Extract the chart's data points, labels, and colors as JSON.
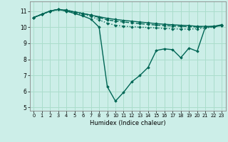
{
  "background_color": "#cceee8",
  "grid_color": "#aaddcc",
  "line_color": "#006655",
  "xlabel": "Humidex (Indice chaleur)",
  "xlim": [
    -0.5,
    23.5
  ],
  "ylim": [
    4.8,
    11.6
  ],
  "yticks": [
    5,
    6,
    7,
    8,
    9,
    10,
    11
  ],
  "xticks": [
    0,
    1,
    2,
    3,
    4,
    5,
    6,
    7,
    8,
    9,
    10,
    11,
    12,
    13,
    14,
    15,
    16,
    17,
    18,
    19,
    20,
    21,
    22,
    23
  ],
  "lines": [
    {
      "x": [
        0,
        1,
        2,
        3,
        4,
        5,
        6,
        7,
        8,
        9,
        10,
        11,
        12,
        13,
        14,
        15,
        16,
        17,
        18,
        19,
        20,
        21,
        22,
        23
      ],
      "y": [
        10.6,
        10.8,
        11.0,
        11.1,
        11.05,
        10.95,
        10.85,
        10.75,
        10.65,
        10.55,
        10.48,
        10.42,
        10.37,
        10.32,
        10.27,
        10.22,
        10.18,
        10.15,
        10.12,
        10.1,
        10.05,
        10.05,
        10.05,
        10.1
      ],
      "style": "-",
      "marker": "D",
      "markersize": 1.8,
      "linewidth": 1.0
    },
    {
      "x": [
        0,
        1,
        2,
        3,
        4,
        5,
        6,
        7,
        8,
        9,
        10,
        11,
        12,
        13,
        14,
        15,
        16,
        17,
        18,
        19,
        20,
        21,
        22,
        23
      ],
      "y": [
        10.6,
        10.8,
        11.0,
        11.1,
        11.05,
        10.95,
        10.85,
        10.75,
        10.6,
        10.45,
        10.38,
        10.32,
        10.27,
        10.22,
        10.17,
        10.13,
        10.1,
        10.07,
        10.05,
        10.03,
        10.01,
        10.01,
        10.03,
        10.1
      ],
      "style": "--",
      "marker": "D",
      "markersize": 1.8,
      "linewidth": 1.0
    },
    {
      "x": [
        0,
        1,
        2,
        3,
        4,
        5,
        6,
        7,
        8,
        9,
        10,
        11,
        12,
        13,
        14,
        15,
        16,
        17,
        18,
        19,
        20,
        21,
        22,
        23
      ],
      "y": [
        10.6,
        10.8,
        11.0,
        11.1,
        11.0,
        10.85,
        10.7,
        10.5,
        10.0,
        6.3,
        5.4,
        5.95,
        6.6,
        7.0,
        7.5,
        8.55,
        8.65,
        8.6,
        8.1,
        8.7,
        8.5,
        10.0,
        10.05,
        10.15
      ],
      "style": "-",
      "marker": "D",
      "markersize": 1.8,
      "linewidth": 1.0
    },
    {
      "x": [
        0,
        1,
        2,
        3,
        4,
        5,
        6,
        7,
        8,
        9,
        10,
        11,
        12,
        13,
        14,
        15,
        16,
        17,
        18,
        19,
        20,
        21,
        22,
        23
      ],
      "y": [
        10.6,
        10.8,
        11.0,
        11.1,
        11.0,
        10.88,
        10.78,
        10.68,
        10.45,
        10.25,
        10.12,
        10.06,
        10.03,
        10.0,
        9.98,
        9.95,
        9.92,
        9.9,
        9.88,
        9.88,
        9.9,
        9.95,
        10.0,
        10.1
      ],
      "style": ":",
      "marker": "D",
      "markersize": 1.8,
      "linewidth": 1.0
    }
  ]
}
